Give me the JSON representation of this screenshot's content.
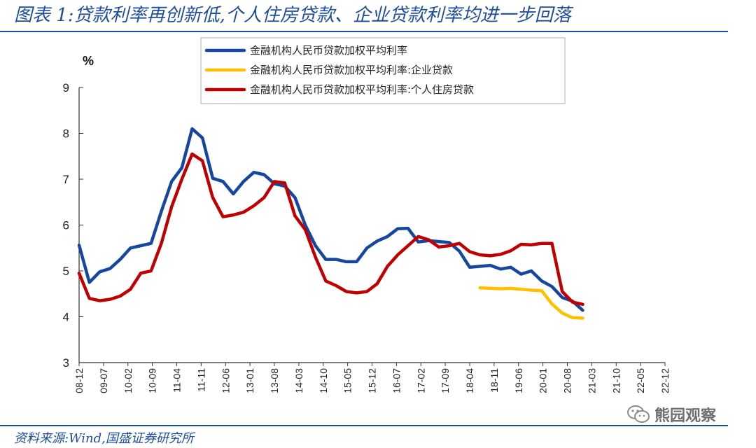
{
  "header": {
    "title": "图表 1:贷款利率再创新低,个人住房贷款、企业贷款利率均进一步回落"
  },
  "footer": {
    "source": "资料来源:Wind,国盛证券研究所"
  },
  "watermark": {
    "text": "熊园观察",
    "icon": "wechat-icon"
  },
  "chart_data": {
    "type": "line",
    "ylabel": "%",
    "ylim": [
      3,
      9
    ],
    "yticks": [
      3,
      4,
      5,
      6,
      7,
      8,
      9
    ],
    "xlim": [
      0,
      57
    ],
    "x_tick_labels": [
      "08-12",
      "09-07",
      "10-02",
      "10-09",
      "11-04",
      "11-11",
      "12-06",
      "13-01",
      "13-08",
      "14-03",
      "14-10",
      "15-05",
      "15-12",
      "16-07",
      "17-02",
      "17-09",
      "18-04",
      "18-11",
      "19-06",
      "20-01",
      "20-08",
      "21-03",
      "21-10",
      "22-05",
      "22-12"
    ],
    "x_tick_indices": [
      0,
      7,
      14,
      21,
      28,
      35,
      42,
      49,
      56,
      63,
      70,
      77,
      84,
      91,
      98,
      105,
      112,
      119,
      126,
      133,
      140,
      147,
      154,
      161,
      168
    ],
    "grid": false,
    "legend_position": "top",
    "series": [
      {
        "name": "金融机构人民币贷款加权平均利率",
        "color": "#1546a0",
        "points": [
          [
            0,
            5.56
          ],
          [
            1,
            4.75
          ],
          [
            2,
            4.98
          ],
          [
            3,
            5.05
          ],
          [
            4,
            5.25
          ],
          [
            5,
            5.5
          ],
          [
            6,
            5.55
          ],
          [
            7,
            5.6
          ],
          [
            8,
            6.3
          ],
          [
            9,
            6.95
          ],
          [
            10,
            7.25
          ],
          [
            11,
            8.1
          ],
          [
            12,
            7.9
          ],
          [
            13,
            7.02
          ],
          [
            14,
            6.95
          ],
          [
            15,
            6.68
          ],
          [
            16,
            6.95
          ],
          [
            17,
            7.15
          ],
          [
            18,
            7.1
          ],
          [
            19,
            6.9
          ],
          [
            20,
            6.85
          ],
          [
            21,
            6.6
          ],
          [
            22,
            6.0
          ],
          [
            23,
            5.55
          ],
          [
            24,
            5.25
          ],
          [
            25,
            5.25
          ],
          [
            26,
            5.2
          ],
          [
            27,
            5.2
          ],
          [
            28,
            5.5
          ],
          [
            29,
            5.65
          ],
          [
            30,
            5.75
          ],
          [
            31,
            5.92
          ],
          [
            32,
            5.93
          ],
          [
            33,
            5.63
          ],
          [
            34,
            5.66
          ],
          [
            35,
            5.64
          ],
          [
            36,
            5.62
          ],
          [
            37,
            5.43
          ],
          [
            38,
            5.08
          ],
          [
            39,
            5.1
          ],
          [
            40,
            5.12
          ],
          [
            41,
            5.04
          ],
          [
            42,
            5.08
          ],
          [
            43,
            4.93
          ],
          [
            44,
            5.0
          ],
          [
            45,
            4.78
          ],
          [
            46,
            4.66
          ],
          [
            47,
            4.42
          ],
          [
            48,
            4.34
          ],
          [
            49,
            4.14
          ]
        ]
      },
      {
        "name": "金融机构人民币贷款加权平均利率:企业贷款",
        "color": "#ffc000",
        "points": [
          [
            39,
            4.63
          ],
          [
            40,
            4.62
          ],
          [
            41,
            4.61
          ],
          [
            42,
            4.62
          ],
          [
            43,
            4.6
          ],
          [
            44,
            4.58
          ],
          [
            45,
            4.57
          ],
          [
            46,
            4.28
          ],
          [
            47,
            4.08
          ],
          [
            48,
            3.98
          ],
          [
            49,
            3.97
          ]
        ]
      },
      {
        "name": "金融机构人民币贷款加权平均利率:个人住房贷款",
        "color": "#c00000",
        "points": [
          [
            0,
            4.95
          ],
          [
            1,
            4.4
          ],
          [
            2,
            4.35
          ],
          [
            3,
            4.38
          ],
          [
            4,
            4.45
          ],
          [
            5,
            4.6
          ],
          [
            6,
            4.95
          ],
          [
            7,
            5.0
          ],
          [
            8,
            5.6
          ],
          [
            9,
            6.4
          ],
          [
            10,
            7.0
          ],
          [
            11,
            7.55
          ],
          [
            12,
            7.4
          ],
          [
            13,
            6.6
          ],
          [
            14,
            6.18
          ],
          [
            15,
            6.22
          ],
          [
            16,
            6.28
          ],
          [
            17,
            6.42
          ],
          [
            18,
            6.6
          ],
          [
            19,
            6.95
          ],
          [
            20,
            6.92
          ],
          [
            21,
            6.2
          ],
          [
            22,
            5.9
          ],
          [
            23,
            5.3
          ],
          [
            24,
            4.78
          ],
          [
            25,
            4.68
          ],
          [
            26,
            4.55
          ],
          [
            27,
            4.52
          ],
          [
            28,
            4.55
          ],
          [
            29,
            4.72
          ],
          [
            30,
            5.1
          ],
          [
            31,
            5.35
          ],
          [
            32,
            5.55
          ],
          [
            33,
            5.75
          ],
          [
            34,
            5.68
          ],
          [
            35,
            5.52
          ],
          [
            36,
            5.55
          ],
          [
            37,
            5.6
          ],
          [
            38,
            5.42
          ],
          [
            39,
            5.35
          ],
          [
            40,
            5.33
          ],
          [
            41,
            5.36
          ],
          [
            42,
            5.44
          ],
          [
            43,
            5.58
          ],
          [
            44,
            5.57
          ],
          [
            45,
            5.6
          ],
          [
            46,
            5.6
          ],
          [
            47,
            4.55
          ],
          [
            48,
            4.32
          ],
          [
            49,
            4.27
          ]
        ]
      }
    ]
  }
}
